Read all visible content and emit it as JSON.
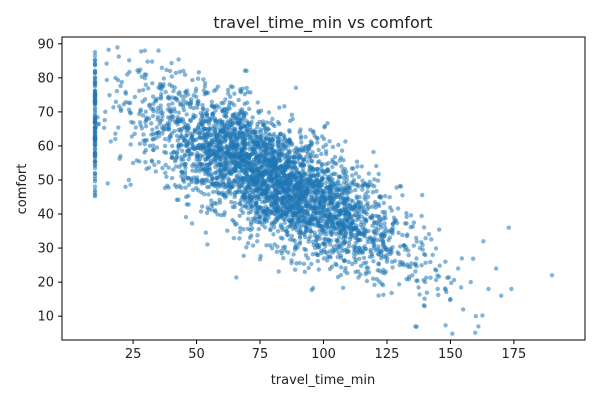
{
  "chart_data": {
    "type": "scatter",
    "title": "travel_time_min vs comfort",
    "xlabel": "travel_time_min",
    "ylabel": "comfort",
    "xlim": [
      -3,
      203
    ],
    "ylim": [
      3,
      92
    ],
    "xticks": [
      25,
      50,
      75,
      100,
      125,
      150,
      175
    ],
    "yticks": [
      10,
      20,
      30,
      40,
      50,
      60,
      70,
      80,
      90
    ],
    "grid": false,
    "legend": "none",
    "marker_color": "#1f77b4",
    "series": [
      {
        "points_sample": [
          [
            10,
            47
          ],
          [
            10,
            52
          ],
          [
            10,
            58
          ],
          [
            10,
            63
          ],
          [
            10,
            70
          ],
          [
            10,
            76
          ],
          [
            10,
            82
          ],
          [
            10,
            84
          ],
          [
            15,
            49
          ],
          [
            18,
            62
          ],
          [
            20,
            57
          ],
          [
            22,
            48
          ],
          [
            25,
            55
          ],
          [
            28,
            66
          ],
          [
            30,
            78
          ],
          [
            33,
            62
          ],
          [
            35,
            88
          ],
          [
            38,
            58
          ],
          [
            40,
            70
          ],
          [
            42,
            54
          ],
          [
            45,
            62
          ],
          [
            48,
            50
          ],
          [
            50,
            56
          ],
          [
            52,
            66
          ],
          [
            55,
            48
          ],
          [
            58,
            60
          ],
          [
            60,
            52
          ],
          [
            62,
            70
          ],
          [
            65,
            45
          ],
          [
            68,
            58
          ],
          [
            70,
            50
          ],
          [
            72,
            64
          ],
          [
            75,
            42
          ],
          [
            78,
            55
          ],
          [
            80,
            48
          ],
          [
            82,
            60
          ],
          [
            85,
            40
          ],
          [
            88,
            52
          ],
          [
            90,
            44
          ],
          [
            92,
            56
          ],
          [
            95,
            38
          ],
          [
            98,
            48
          ],
          [
            100,
            42
          ],
          [
            102,
            55
          ],
          [
            105,
            36
          ],
          [
            108,
            46
          ],
          [
            110,
            40
          ],
          [
            112,
            50
          ],
          [
            115,
            34
          ],
          [
            118,
            42
          ],
          [
            120,
            30
          ],
          [
            122,
            45
          ],
          [
            125,
            28
          ],
          [
            128,
            38
          ],
          [
            130,
            25
          ],
          [
            133,
            34
          ],
          [
            135,
            22
          ],
          [
            138,
            30
          ],
          [
            140,
            20
          ],
          [
            143,
            28
          ],
          [
            145,
            18
          ],
          [
            148,
            26
          ],
          [
            150,
            15
          ],
          [
            153,
            24
          ],
          [
            155,
            12
          ],
          [
            158,
            20
          ],
          [
            160,
            10
          ],
          [
            161,
            7
          ],
          [
            163,
            32
          ],
          [
            165,
            18
          ],
          [
            168,
            24
          ],
          [
            170,
            16
          ],
          [
            173,
            36
          ],
          [
            174,
            18
          ],
          [
            190,
            22
          ]
        ]
      }
    ]
  }
}
